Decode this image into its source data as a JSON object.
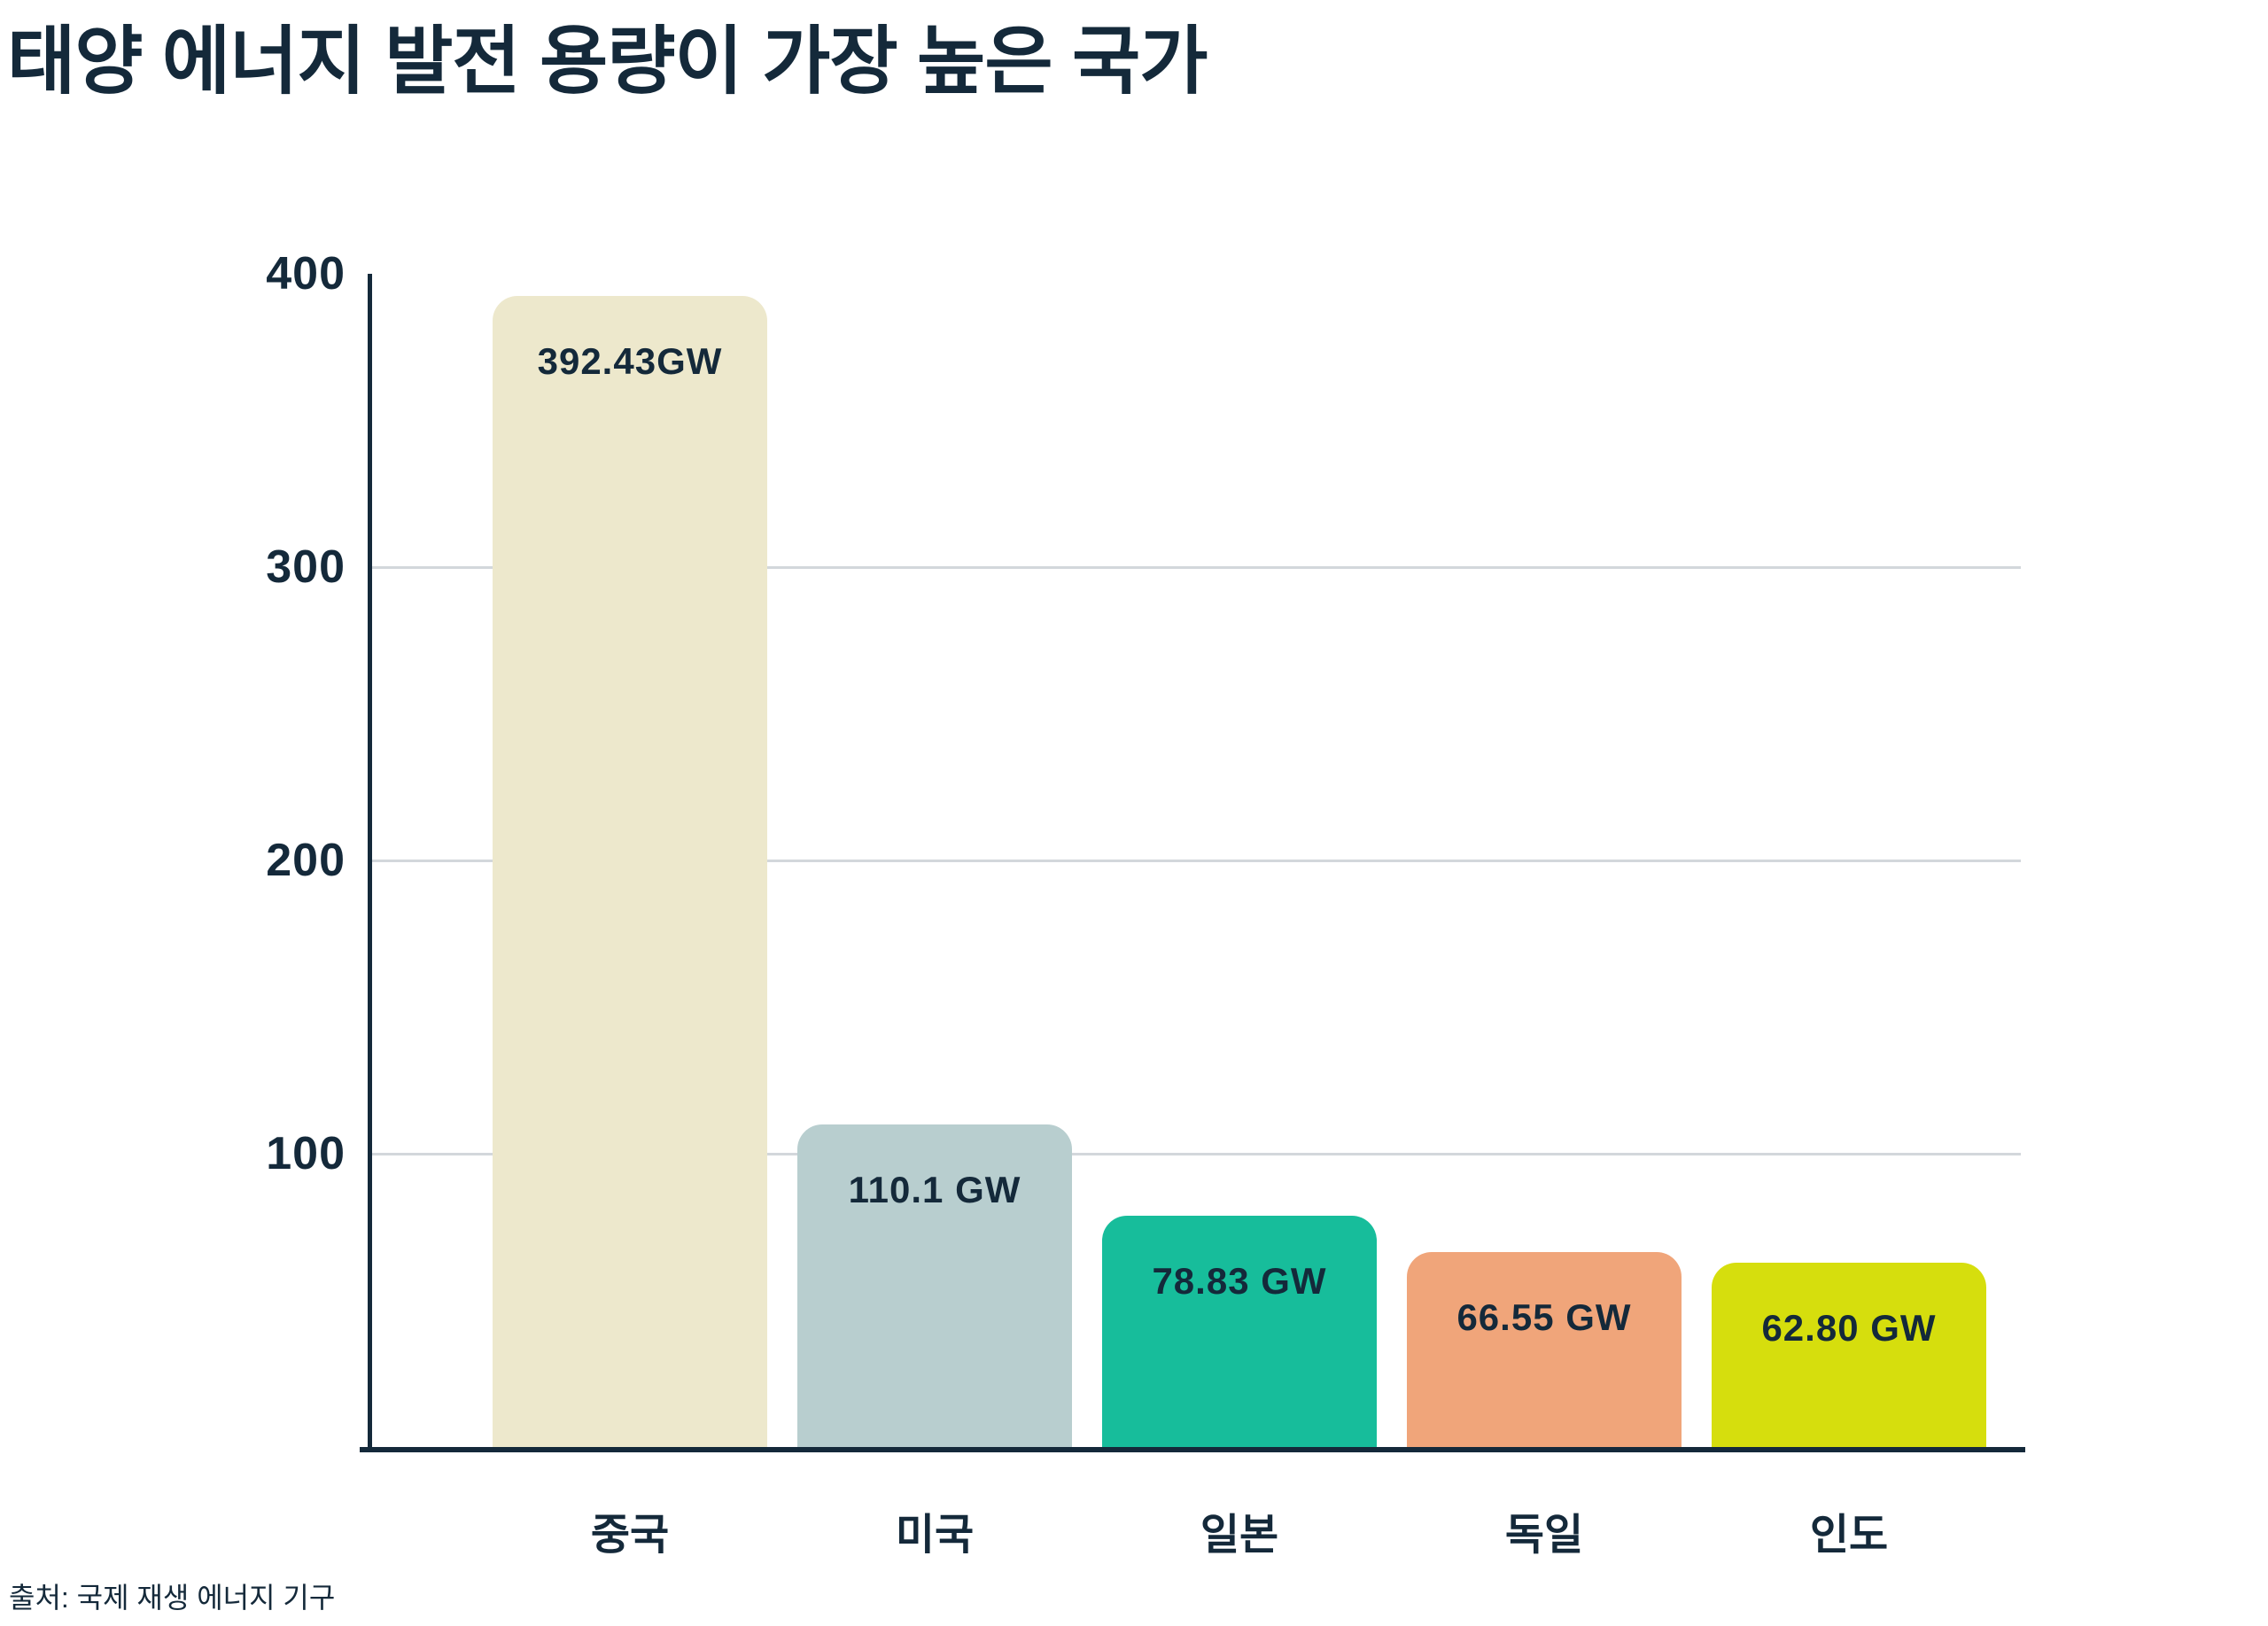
{
  "title": "태양 에너지 발전 용량이 가장 높은 국가",
  "source": "출처: 국제 재생 에너지 기구",
  "colors": {
    "text": "#14293A",
    "axis": "#14293A",
    "gridline": "#D3D7DB",
    "background": "#FFFFFF"
  },
  "chart_data": {
    "type": "bar",
    "title": "태양 에너지 발전 용량이 가장 높은 국가",
    "categories": [
      "중국",
      "미국",
      "일본",
      "독일",
      "인도"
    ],
    "values": [
      392.43,
      110.1,
      78.83,
      66.55,
      62.8
    ],
    "value_labels": [
      "392.43GW",
      "110.1 GW",
      "78.83 GW",
      "66.55 GW",
      "62.80 GW"
    ],
    "bar_colors": [
      "#EDE8CC",
      "#B8CECF",
      "#17BD9B",
      "#F0A57A",
      "#D6DE0D"
    ],
    "unit": "GW",
    "xlabel": "",
    "ylabel": "",
    "ylim": [
      0,
      400
    ],
    "yticks": [
      400,
      300,
      200,
      100
    ],
    "gridlines_at": [
      300,
      200,
      100
    ],
    "grid": "horizontal",
    "legend": "none",
    "source": "출처: 국제 재생 에너지 기구"
  }
}
